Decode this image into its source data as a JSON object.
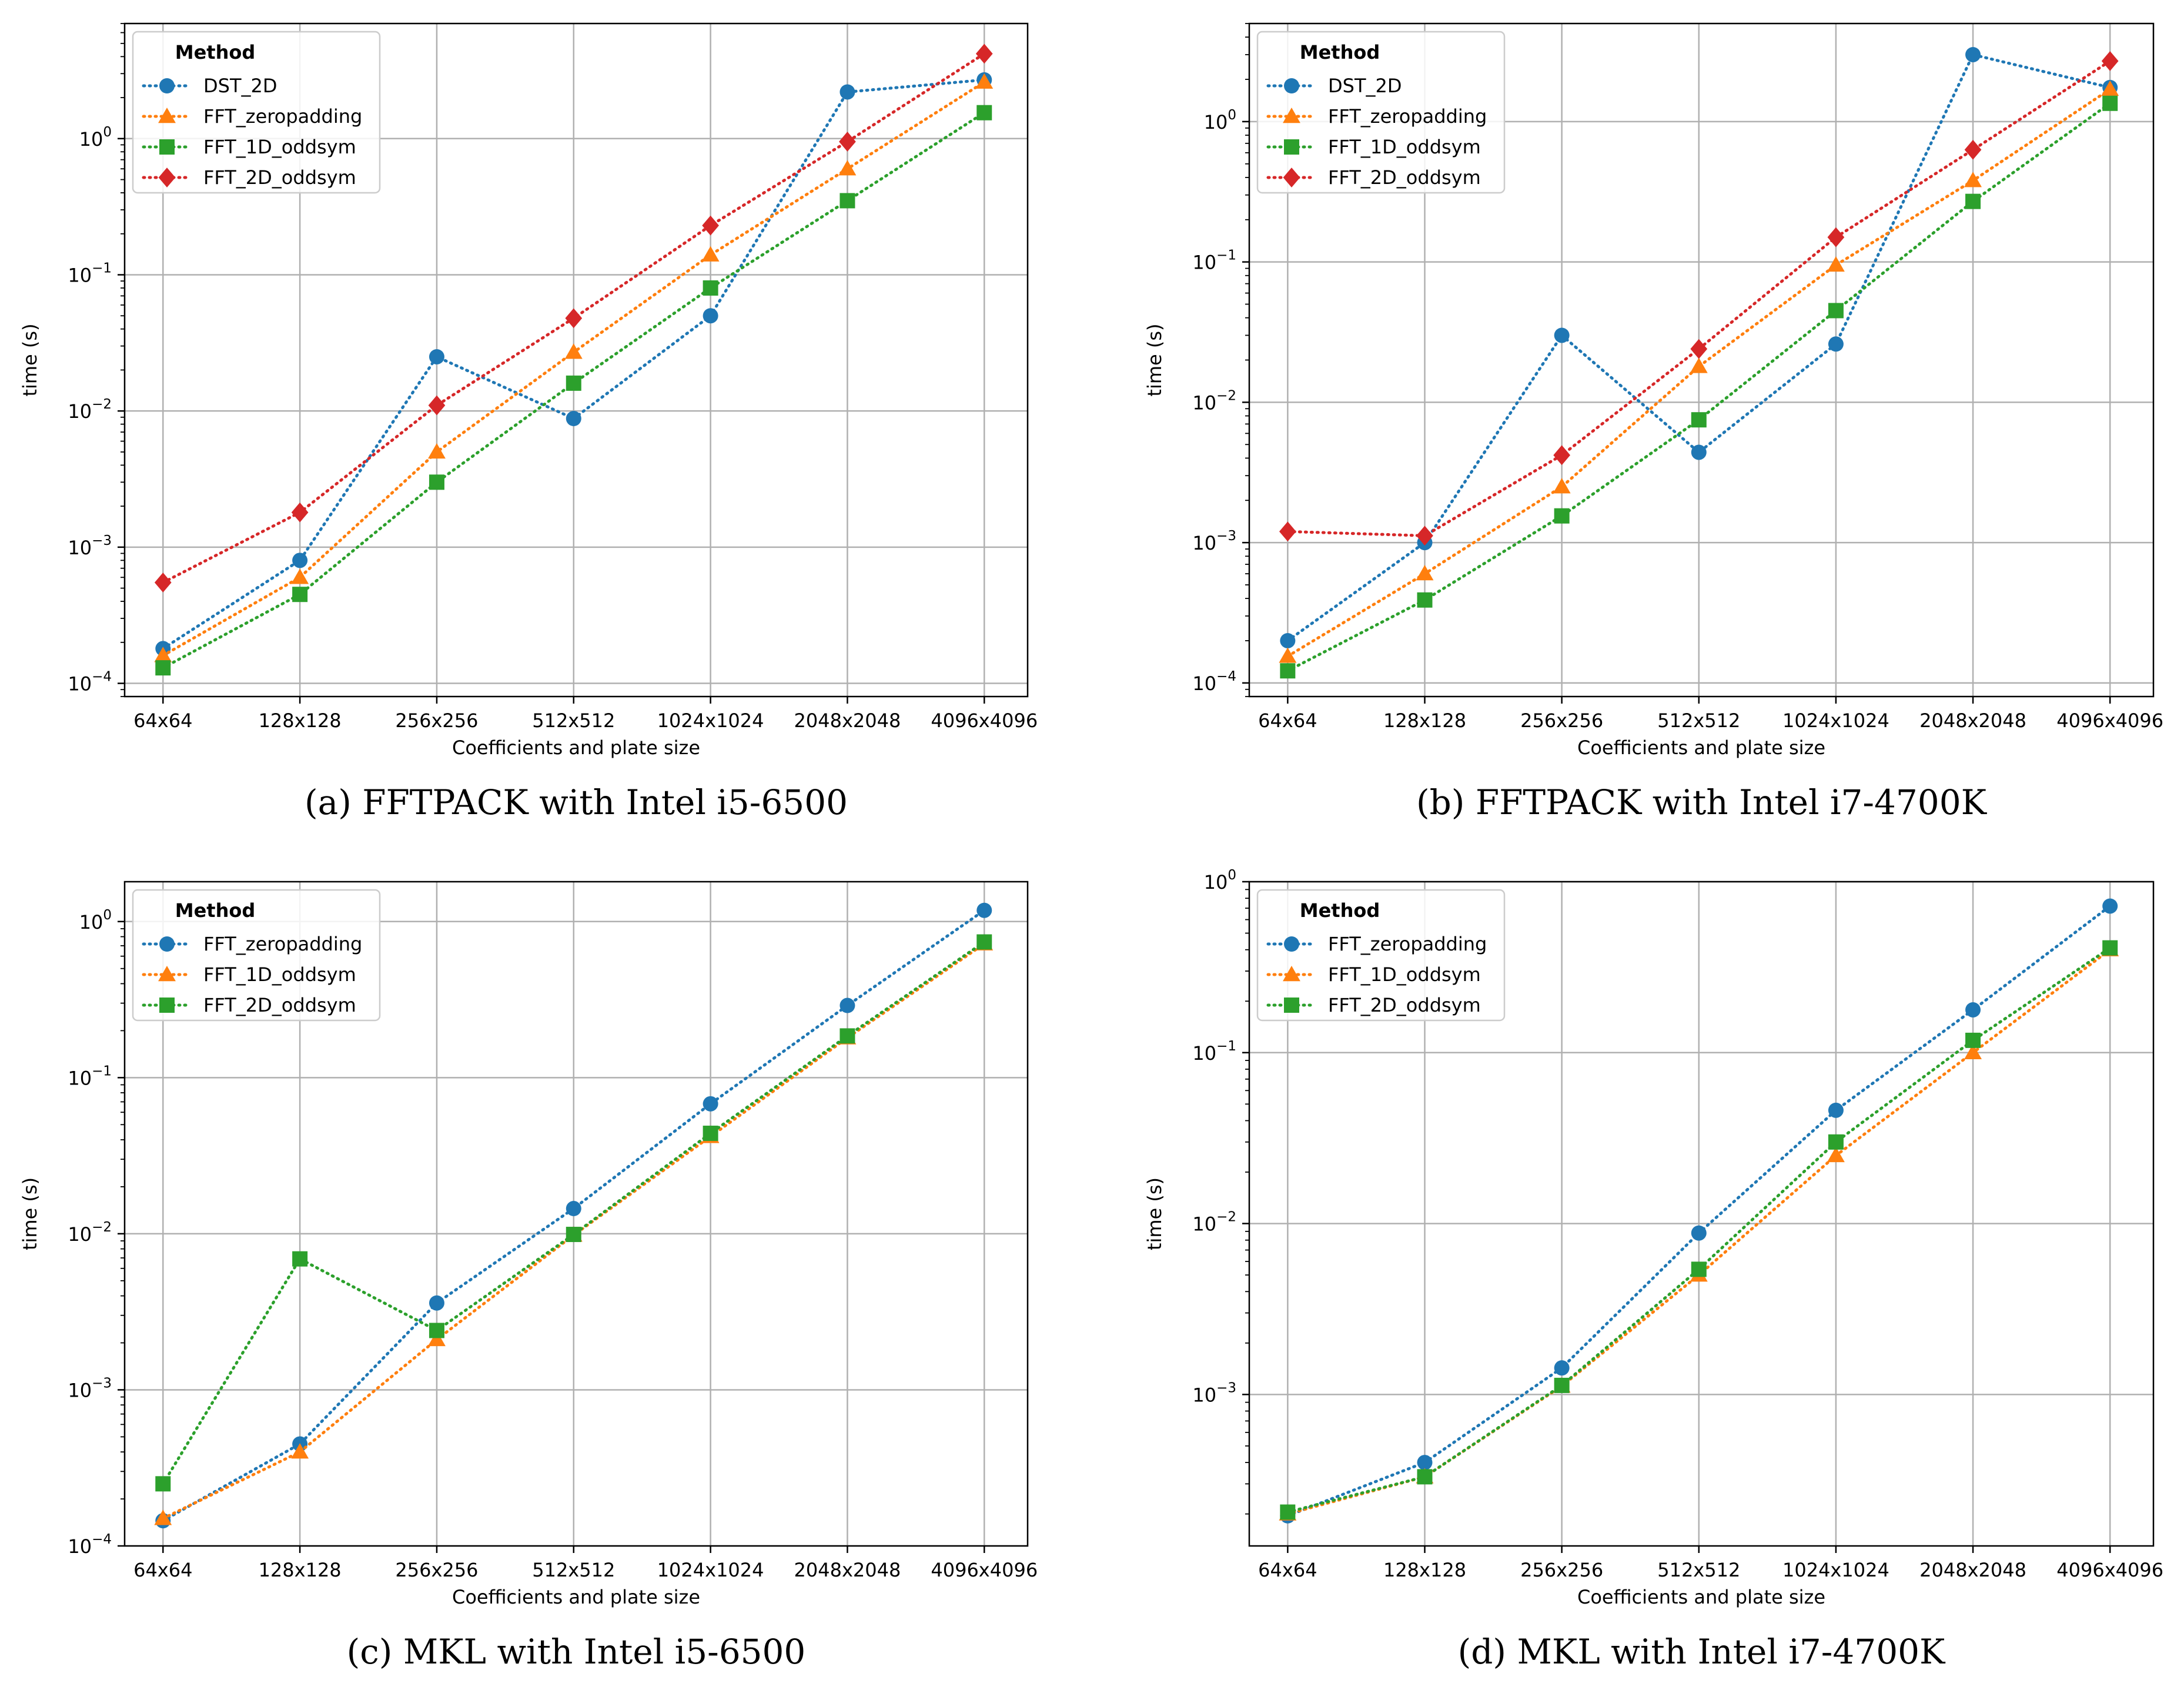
{
  "colors": {
    "blue": "#1f77b4",
    "orange": "#ff7f0e",
    "green": "#2ca02c",
    "red": "#d62728",
    "grid": "#b0b0b0"
  },
  "chart_data": [
    {
      "type": "line",
      "panel": "a",
      "caption": "(a)  FFTPACK with Intel i5-6500",
      "xlabel": "Coefficients and plate size",
      "ylabel": "time (s)",
      "legend_title": "Method",
      "legend_position": "upper-left",
      "yscale": "log",
      "ylim": [
        8e-05,
        7
      ],
      "yticks": [
        "10^-4",
        "10^-3",
        "10^-2",
        "10^-1",
        "10^0"
      ],
      "grid": true,
      "categories": [
        "64x64",
        "128x128",
        "256x256",
        "512x512",
        "1024x1024",
        "2048x2048",
        "4096x4096"
      ],
      "series": [
        {
          "name": "DST_2D",
          "color": "blue",
          "marker": "circle",
          "values": [
            0.00018,
            0.0008,
            0.025,
            0.0088,
            0.05,
            2.2,
            2.7
          ]
        },
        {
          "name": "FFT_zeropadding",
          "color": "orange",
          "marker": "triangle",
          "values": [
            0.00016,
            0.0006,
            0.005,
            0.027,
            0.14,
            0.6,
            2.6
          ]
        },
        {
          "name": "FFT_1D_oddsym",
          "color": "green",
          "marker": "square",
          "values": [
            0.00013,
            0.00045,
            0.003,
            0.016,
            0.08,
            0.35,
            1.55
          ]
        },
        {
          "name": "FFT_2D_oddsym",
          "color": "red",
          "marker": "diamond",
          "values": [
            0.00055,
            0.0018,
            0.011,
            0.048,
            0.23,
            0.95,
            4.2
          ]
        }
      ]
    },
    {
      "type": "line",
      "panel": "b",
      "caption": "(b)  FFTPACK with Intel i7-4700K",
      "xlabel": "Coefficients and plate size",
      "ylabel": "time (s)",
      "legend_title": "Method",
      "legend_position": "upper-left",
      "yscale": "log",
      "ylim": [
        8e-05,
        5
      ],
      "yticks": [
        "10^-4",
        "10^-3",
        "10^-2",
        "10^-1",
        "10^0"
      ],
      "grid": true,
      "categories": [
        "64x64",
        "128x128",
        "256x256",
        "512x512",
        "1024x1024",
        "2048x2048",
        "4096x4096"
      ],
      "series": [
        {
          "name": "DST_2D",
          "color": "blue",
          "marker": "circle",
          "values": [
            0.0002,
            0.001,
            0.03,
            0.0044,
            0.026,
            3.0,
            1.75
          ]
        },
        {
          "name": "FFT_zeropadding",
          "color": "orange",
          "marker": "triangle",
          "values": [
            0.000155,
            0.0006,
            0.0025,
            0.018,
            0.095,
            0.38,
            1.7
          ]
        },
        {
          "name": "FFT_1D_oddsym",
          "color": "green",
          "marker": "square",
          "values": [
            0.000122,
            0.00039,
            0.00155,
            0.0075,
            0.045,
            0.27,
            1.35
          ]
        },
        {
          "name": "FFT_2D_oddsym",
          "color": "red",
          "marker": "diamond",
          "values": [
            0.0012,
            0.00112,
            0.0042,
            0.024,
            0.15,
            0.63,
            2.7
          ]
        }
      ]
    },
    {
      "type": "line",
      "panel": "c",
      "caption": "(c)  MKL with Intel i5-6500",
      "xlabel": "Coefficients and plate size",
      "ylabel": "time (s)",
      "legend_title": "Method",
      "legend_position": "upper-left",
      "yscale": "log",
      "ylim": [
        0.0001,
        1.8
      ],
      "yticks": [
        "10^-4",
        "10^-3",
        "10^-2",
        "10^-1",
        "10^0"
      ],
      "grid": true,
      "categories": [
        "64x64",
        "128x128",
        "256x256",
        "512x512",
        "1024x1024",
        "2048x2048",
        "4096x4096"
      ],
      "series": [
        {
          "name": "FFT_zeropadding",
          "color": "blue",
          "marker": "circle",
          "values": [
            0.000145,
            0.00045,
            0.0036,
            0.0145,
            0.068,
            0.29,
            1.18
          ]
        },
        {
          "name": "FFT_1D_oddsym",
          "color": "orange",
          "marker": "triangle",
          "values": [
            0.00015,
            0.0004,
            0.0021,
            0.0098,
            0.042,
            0.18,
            0.72
          ]
        },
        {
          "name": "FFT_2D_oddsym",
          "color": "green",
          "marker": "square",
          "values": [
            0.00025,
            0.0069,
            0.0024,
            0.0099,
            0.044,
            0.185,
            0.74
          ]
        }
      ]
    },
    {
      "type": "line",
      "panel": "d",
      "caption": "(d)  MKL with Intel i7-4700K",
      "xlabel": "Coefficients and plate size",
      "ylabel": "time (s)",
      "legend_title": "Method",
      "legend_position": "upper-left",
      "yscale": "log",
      "ylim": [
        0.00013,
        1
      ],
      "yticks": [
        "10^-3",
        "10^-2",
        "10^-1",
        "10^0"
      ],
      "grid": true,
      "categories": [
        "64x64",
        "128x128",
        "256x256",
        "512x512",
        "1024x1024",
        "2048x2048",
        "4096x4096"
      ],
      "series": [
        {
          "name": "FFT_zeropadding",
          "color": "blue",
          "marker": "circle",
          "values": [
            0.000195,
            0.0004,
            0.00143,
            0.0088,
            0.046,
            0.178,
            0.72
          ]
        },
        {
          "name": "FFT_1D_oddsym",
          "color": "orange",
          "marker": "triangle",
          "values": [
            0.0002,
            0.00033,
            0.00112,
            0.005,
            0.025,
            0.1,
            0.4
          ]
        },
        {
          "name": "FFT_2D_oddsym",
          "color": "green",
          "marker": "square",
          "values": [
            0.000205,
            0.00033,
            0.00113,
            0.0054,
            0.03,
            0.118,
            0.41
          ]
        }
      ]
    }
  ]
}
